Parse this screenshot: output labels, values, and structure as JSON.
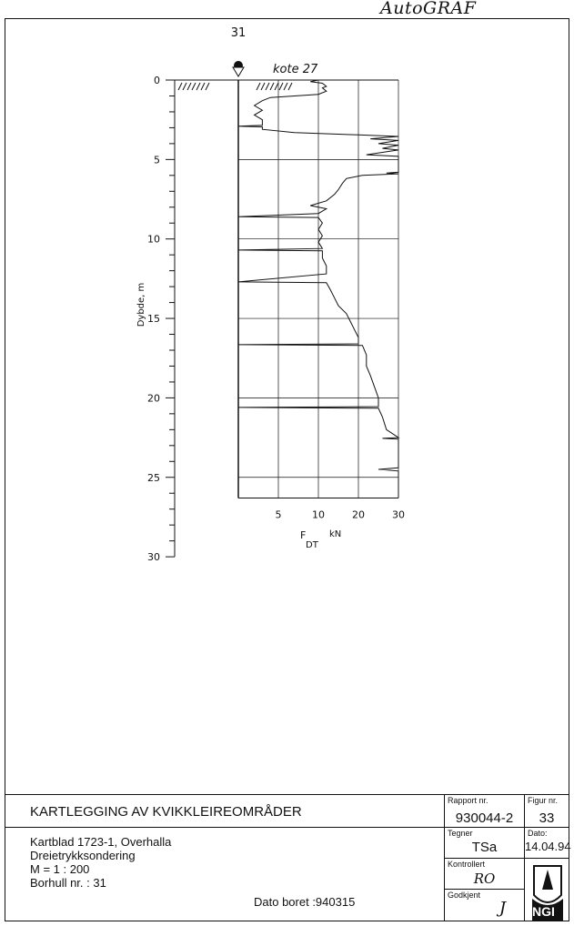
{
  "brand": "AutoGRAF",
  "borehole_label": "31",
  "elevation_label": "kote 27",
  "chart_data": {
    "type": "line",
    "ylabel": "Dybde, m",
    "xlabel": "F",
    "xlabel_sub": "DT",
    "xunit": "kN",
    "yticks": [
      "0",
      "5",
      "10",
      "15",
      "20",
      "25",
      "30"
    ],
    "ytick_values": [
      0,
      5,
      10,
      15,
      20,
      25,
      30
    ],
    "xticks": [
      "5",
      "10",
      "20",
      "30"
    ],
    "xtick_values": [
      5,
      10,
      20,
      30
    ],
    "ylim": [
      0,
      30
    ],
    "xlim": [
      0,
      30
    ],
    "x_scale": "piecewise: 0-10 expanded, 10-30 compressed",
    "grid": true,
    "grid_depth_limit": 26.3,
    "groundwater_depth": 0,
    "series": [
      {
        "points": [
          [
            0,
            10
          ],
          [
            0.1,
            9
          ],
          [
            0.2,
            11
          ],
          [
            0.4,
            12
          ],
          [
            0.5,
            11
          ],
          [
            0.7,
            12
          ],
          [
            0.9,
            10
          ],
          [
            1.0,
            7
          ],
          [
            1.1,
            4
          ],
          [
            1.3,
            3
          ],
          [
            1.6,
            2
          ],
          [
            1.9,
            3
          ],
          [
            2.2,
            2
          ],
          [
            2.5,
            3
          ],
          [
            2.85,
            3
          ],
          [
            2.9,
            0
          ],
          [
            2.95,
            3
          ],
          [
            3.1,
            3
          ],
          [
            3.3,
            7
          ],
          [
            3.45,
            20
          ],
          [
            3.55,
            30
          ],
          [
            3.7,
            23
          ],
          [
            3.8,
            30
          ],
          [
            4.0,
            25
          ],
          [
            4.1,
            30
          ],
          [
            4.3,
            26
          ],
          [
            4.4,
            30
          ],
          [
            4.7,
            22
          ],
          [
            4.8,
            30
          ],
          [
            5.0,
            30
          ],
          [
            5.8,
            30
          ],
          [
            5.85,
            27
          ],
          [
            5.9,
            30
          ],
          [
            6.0,
            21
          ],
          [
            6.2,
            17
          ],
          [
            6.5,
            16
          ],
          [
            6.9,
            15
          ],
          [
            7.2,
            14
          ],
          [
            7.6,
            12
          ],
          [
            7.9,
            9
          ],
          [
            8.1,
            12
          ],
          [
            8.4,
            10
          ],
          [
            8.6,
            0
          ],
          [
            8.65,
            10
          ],
          [
            9.0,
            11
          ],
          [
            9.4,
            10
          ],
          [
            9.8,
            11
          ],
          [
            10.2,
            10
          ],
          [
            10.6,
            11
          ],
          [
            10.7,
            0
          ],
          [
            10.75,
            11
          ],
          [
            11.2,
            11
          ],
          [
            11.7,
            12
          ],
          [
            12.2,
            12
          ],
          [
            12.7,
            0
          ],
          [
            12.75,
            12
          ],
          [
            13.2,
            13
          ],
          [
            13.7,
            14
          ],
          [
            14.2,
            15
          ],
          [
            14.7,
            17
          ],
          [
            15.2,
            18
          ],
          [
            15.7,
            19
          ],
          [
            16.2,
            20
          ],
          [
            16.6,
            20
          ],
          [
            16.65,
            0
          ],
          [
            16.7,
            21
          ],
          [
            17.3,
            22
          ],
          [
            18.0,
            22
          ],
          [
            18.6,
            23
          ],
          [
            19.3,
            24
          ],
          [
            20.0,
            25
          ],
          [
            20.55,
            25
          ],
          [
            20.6,
            0
          ],
          [
            20.65,
            25
          ],
          [
            21.2,
            26
          ],
          [
            22.0,
            27
          ],
          [
            22.5,
            30
          ],
          [
            22.55,
            26
          ],
          [
            22.6,
            30
          ],
          [
            24.4,
            30
          ],
          [
            24.5,
            25
          ],
          [
            24.6,
            30
          ],
          [
            26.3,
            30
          ]
        ]
      }
    ]
  },
  "titleblock": {
    "project": "KARTLEGGING AV KVIKKLEIREOMRÅDER",
    "lines": [
      "Kartblad 1723-1, Overhalla",
      "Dreietrykksondering",
      "M = 1 : 200",
      "Borhull nr. : 31"
    ],
    "date_drilled": "Dato boret :940315",
    "report_label": "Rapport nr.",
    "report_value": "930044-2",
    "figure_label": "Figur nr.",
    "figure_value": "33",
    "drawn_label": "Tegner",
    "drawn_value": "TSa",
    "date_label": "Dato:",
    "date_value": "14.04.94",
    "checked_label": "Kontrollert",
    "checked_value": "RO",
    "approved_label": "Godkjent",
    "approved_value": "J",
    "logo": "NGI"
  }
}
